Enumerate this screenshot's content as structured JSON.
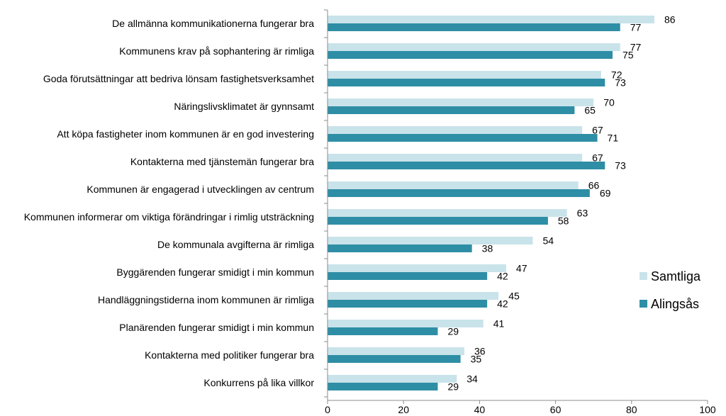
{
  "chart_data": {
    "type": "bar",
    "orientation": "horizontal",
    "categories": [
      "De allmänna kommunikationerna fungerar bra",
      "Kommunens krav på sophantering är rimliga",
      "Goda förutsättningar att bedriva lönsam fastighetsverksamhet",
      "Näringslivsklimatet är gynnsamt",
      "Att köpa fastigheter inom kommunen är en god investering",
      "Kontakterna med tjänstemän fungerar bra",
      "Kommunen är engagerad i utvecklingen av centrum",
      "Kommunen informerar om viktiga förändringar i rimlig utsträckning",
      "De kommunala avgifterna är rimliga",
      "Byggärenden fungerar smidigt i min kommun",
      "Handläggningstiderna inom kommunen är rimliga",
      "Planärenden fungerar smidigt i min kommun",
      "Kontakterna med politiker fungerar bra",
      "Konkurrens på lika villkor"
    ],
    "series": [
      {
        "name": "Samtliga",
        "color": "#c9e3ea",
        "values": [
          86,
          77,
          72,
          70,
          67,
          67,
          66,
          63,
          54,
          47,
          45,
          41,
          36,
          34
        ]
      },
      {
        "name": "Alingsås",
        "color": "#2e8ea5",
        "values": [
          77,
          75,
          73,
          65,
          71,
          73,
          69,
          58,
          38,
          42,
          42,
          29,
          35,
          29
        ]
      }
    ],
    "xlim": [
      0,
      100
    ],
    "xticks": [
      0,
      20,
      40,
      60,
      80,
      100
    ],
    "legend_position": "right",
    "grid": false
  }
}
